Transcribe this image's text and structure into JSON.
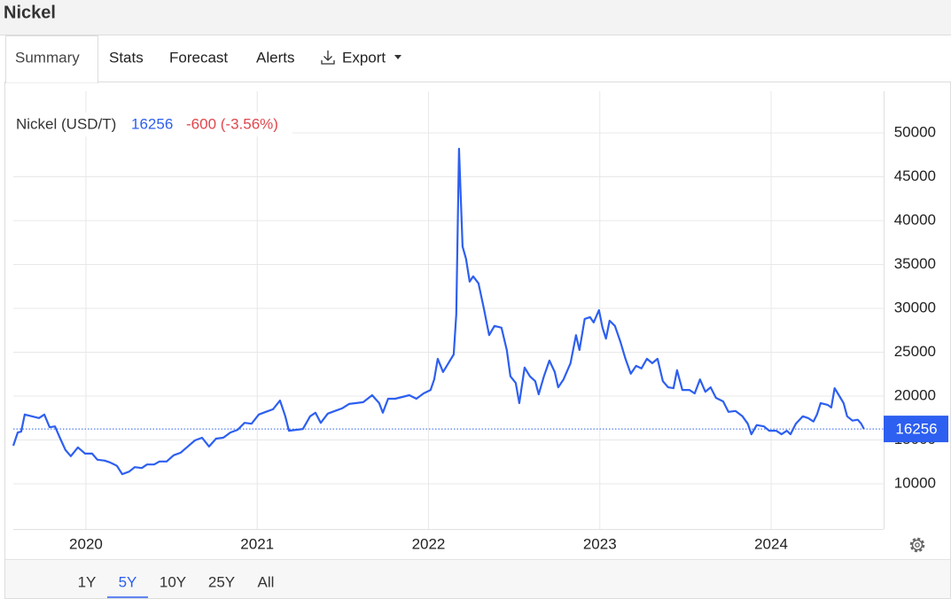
{
  "header": {
    "title": "Nickel"
  },
  "tabs": [
    "Summary",
    "Stats",
    "Forecast",
    "Alerts",
    "Export"
  ],
  "chart_data": {
    "type": "line",
    "last_price": 16256,
    "change": "-600 (-3.56%)",
    "x": [
      2019.576,
      2019.602,
      2019.622,
      2019.643,
      2019.684,
      2019.726,
      2019.757,
      2019.788,
      2019.819,
      2019.85,
      2019.881,
      2019.912,
      2019.953,
      2019.995,
      2020.036,
      2020.067,
      2020.109,
      2020.14,
      2020.181,
      2020.212,
      2020.253,
      2020.285,
      2020.326,
      2020.357,
      2020.398,
      2020.429,
      2020.471,
      2020.512,
      2020.553,
      2020.595,
      2020.636,
      2020.678,
      2020.719,
      2020.76,
      2020.802,
      2020.843,
      2020.885,
      2020.926,
      2020.967,
      2021.009,
      2021.05,
      2021.092,
      2021.133,
      2021.164,
      2021.185,
      2021.226,
      2021.267,
      2021.309,
      2021.34,
      2021.371,
      2021.412,
      2021.453,
      2021.495,
      2021.536,
      2021.578,
      2021.619,
      2021.671,
      2021.712,
      2021.733,
      2021.764,
      2021.805,
      2021.847,
      2021.888,
      2021.929,
      2021.971,
      2022.012,
      2022.033,
      2022.054,
      2022.085,
      2022.116,
      2022.147,
      2022.162,
      2022.178,
      2022.199,
      2022.219,
      2022.24,
      2022.261,
      2022.292,
      2022.323,
      2022.354,
      2022.385,
      2022.426,
      2022.457,
      2022.478,
      2022.509,
      2022.53,
      2022.561,
      2022.592,
      2022.623,
      2022.643,
      2022.674,
      2022.706,
      2022.737,
      2022.757,
      2022.788,
      2022.829,
      2022.861,
      2022.881,
      2022.912,
      2022.943,
      2022.964,
      2022.995,
      2023.016,
      2023.036,
      2023.057,
      2023.088,
      2023.119,
      2023.15,
      2023.181,
      2023.212,
      2023.243,
      2023.275,
      2023.306,
      2023.337,
      2023.368,
      2023.399,
      2023.43,
      2023.451,
      2023.482,
      2023.523,
      2023.554,
      2023.585,
      2023.616,
      2023.647,
      2023.678,
      2023.72,
      2023.751,
      2023.792,
      2023.833,
      2023.864,
      2023.885,
      2023.916,
      2023.958,
      2023.989,
      2024.03,
      2024.061,
      2024.092,
      2024.113,
      2024.144,
      2024.185,
      2024.216,
      2024.247,
      2024.268,
      2024.289,
      2024.33,
      2024.351,
      2024.371,
      2024.402,
      2024.423,
      2024.444,
      2024.475,
      2024.506,
      2024.526,
      2024.542
    ],
    "series": [
      {
        "name": "Nickel (USD/T)",
        "color": "#2d5ff0",
        "values": [
          14350,
          15850,
          15950,
          17900,
          17700,
          17500,
          17900,
          16450,
          16550,
          15150,
          13850,
          13150,
          14150,
          13450,
          13450,
          12750,
          12650,
          12450,
          12050,
          11100,
          11400,
          11900,
          11800,
          12200,
          12200,
          12550,
          12550,
          13250,
          13550,
          14250,
          14950,
          15250,
          14250,
          15150,
          15250,
          15850,
          16150,
          16950,
          16850,
          17900,
          18200,
          18500,
          19500,
          17700,
          16050,
          16150,
          16250,
          17700,
          18100,
          16950,
          18000,
          18300,
          18600,
          19100,
          19200,
          19300,
          20100,
          19200,
          18100,
          19700,
          19700,
          19900,
          20100,
          19700,
          20300,
          20700,
          21900,
          24250,
          22750,
          23750,
          24750,
          29300,
          48200,
          37050,
          35650,
          33050,
          33650,
          32850,
          30000,
          26950,
          28000,
          27800,
          25250,
          22250,
          21500,
          19200,
          23250,
          22250,
          21700,
          20200,
          22250,
          24050,
          22750,
          21000,
          21900,
          23750,
          26950,
          25250,
          28800,
          29000,
          28400,
          29800,
          27800,
          26550,
          28600,
          28000,
          26250,
          24250,
          22550,
          23450,
          23150,
          24250,
          23750,
          24250,
          21700,
          21000,
          20900,
          22950,
          20700,
          20700,
          20300,
          21900,
          20500,
          21000,
          19800,
          19400,
          18200,
          18300,
          17700,
          16850,
          15650,
          16700,
          16550,
          16050,
          16050,
          15650,
          16050,
          15650,
          16850,
          17700,
          17500,
          17100,
          17900,
          19200,
          19000,
          18700,
          20900,
          19900,
          19200,
          17700,
          17200,
          17300,
          16850,
          16256
        ]
      }
    ],
    "xlim": [
      2019.576,
      2024.657
    ],
    "xticks": [
      2020,
      2021,
      2022,
      2023,
      2024
    ],
    "ylim": [
      4850,
      54750
    ],
    "yticks": [
      10000,
      15000,
      20000,
      25000,
      30000,
      35000,
      40000,
      45000,
      50000
    ],
    "grid": true
  },
  "ranges": [
    "1Y",
    "5Y",
    "10Y",
    "25Y",
    "All"
  ],
  "active_range": "5Y"
}
